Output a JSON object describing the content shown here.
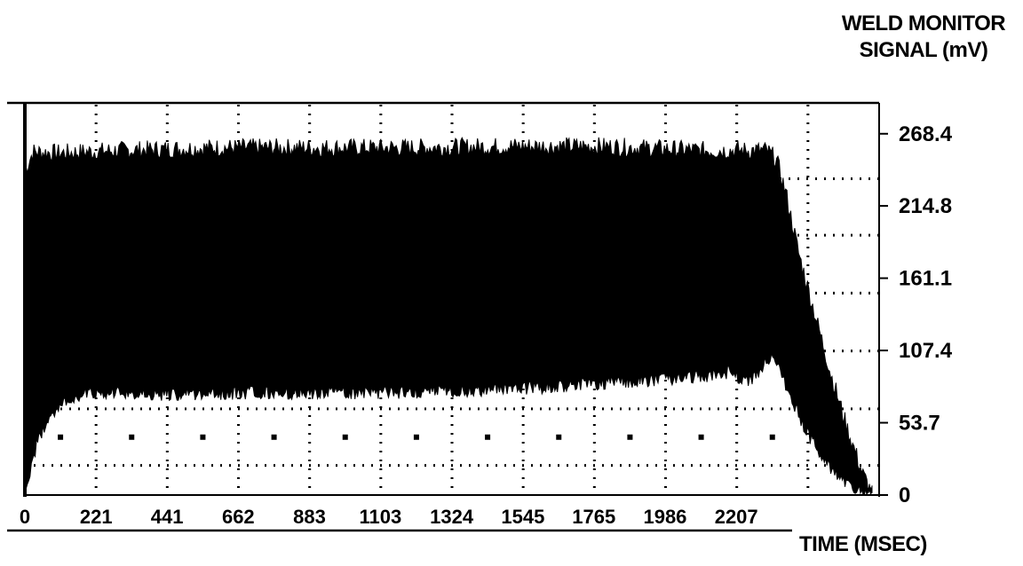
{
  "chart_data": {
    "type": "area",
    "title": "",
    "ylabel_line1": "WELD MONITOR",
    "ylabel_line2": "SIGNAL (mV)",
    "xlabel": "TIME (MSEC)",
    "x_ticks": [
      "0",
      "221",
      "441",
      "662",
      "883",
      "1103",
      "1324",
      "1545",
      "1765",
      "1986",
      "2207"
    ],
    "y_ticks": [
      "0",
      "53.7",
      "107.4",
      "161.1",
      "214.8",
      "268.4"
    ],
    "xlim": [
      0,
      2650
    ],
    "ylim": [
      0,
      290
    ],
    "grid": true,
    "series": [
      {
        "values_description": "dense oscillating weld signal envelope",
        "upper": [
          [
            0,
            240
          ],
          [
            25,
            255
          ],
          [
            100,
            254
          ],
          [
            300,
            256
          ],
          [
            600,
            258
          ],
          [
            900,
            258
          ],
          [
            1200,
            258
          ],
          [
            1500,
            259
          ],
          [
            1800,
            259
          ],
          [
            2100,
            256
          ],
          [
            2300,
            256
          ],
          [
            2330,
            250
          ],
          [
            2360,
            225
          ],
          [
            2400,
            180
          ],
          [
            2450,
            135
          ],
          [
            2500,
            90
          ],
          [
            2550,
            50
          ],
          [
            2600,
            15
          ],
          [
            2630,
            0
          ]
        ],
        "lower": [
          [
            0,
            0
          ],
          [
            15,
            15
          ],
          [
            40,
            40
          ],
          [
            80,
            60
          ],
          [
            150,
            72
          ],
          [
            200,
            76
          ],
          [
            400,
            75
          ],
          [
            700,
            76
          ],
          [
            1000,
            76
          ],
          [
            1300,
            77
          ],
          [
            1600,
            80
          ],
          [
            1900,
            85
          ],
          [
            2100,
            88
          ],
          [
            2200,
            92
          ],
          [
            2220,
            84
          ],
          [
            2270,
            87
          ],
          [
            2300,
            100
          ],
          [
            2320,
            105
          ],
          [
            2340,
            95
          ],
          [
            2380,
            70
          ],
          [
            2430,
            45
          ],
          [
            2480,
            25
          ],
          [
            2530,
            12
          ],
          [
            2580,
            4
          ],
          [
            2630,
            0
          ]
        ]
      }
    ]
  }
}
